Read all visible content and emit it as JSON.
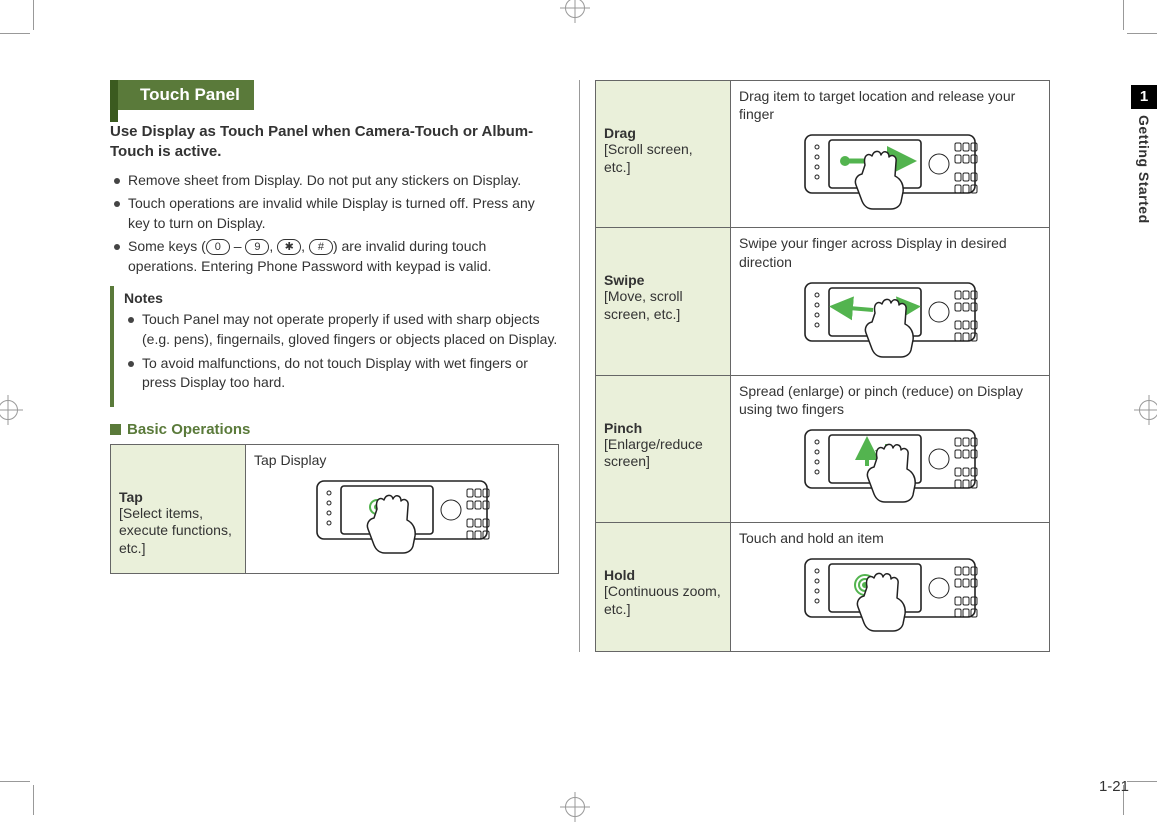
{
  "side": {
    "chapter": "1",
    "label": "Getting Started"
  },
  "heading": "Touch Panel",
  "intro": "Use Display as Touch Panel when Camera-Touch or Album-Touch is active.",
  "bullets": [
    "Remove sheet from Display. Do not put any stickers on Display.",
    "Touch operations are invalid while Display is turned off. Press any key to turn on Display."
  ],
  "bullet3_pre": "Some keys (",
  "bullet3_keys": {
    "k0": "0",
    "dash": " – ",
    "k9": "9",
    "c1": ", ",
    "kstar": "✱",
    "c2": ", ",
    "khash": "#"
  },
  "bullet3_post": ") are invalid during touch operations. Entering Phone Password with keypad is valid.",
  "notes": {
    "title": "Notes",
    "items": [
      "Touch Panel may not operate properly if used with sharp objects (e.g. pens), fingernails, gloved fingers or objects placed on Display.",
      "To avoid malfunctions, do not touch Display with wet fingers or press Display too hard."
    ]
  },
  "sub_heading": "Basic Operations",
  "ops": [
    {
      "title": "Tap",
      "desc": "[Select items, execute functions, etc.]",
      "caption": "Tap Display",
      "kind": "tap"
    },
    {
      "title": "Drag",
      "desc": "[Scroll screen, etc.]",
      "caption": "Drag item to target location and release your finger",
      "kind": "drag"
    },
    {
      "title": "Swipe",
      "desc": "[Move, scroll screen, etc.]",
      "caption": "Swipe your finger across Display in desired direction",
      "kind": "swipe"
    },
    {
      "title": "Pinch",
      "desc": "[Enlarge/reduce screen]",
      "caption": "Spread (enlarge) or pinch (reduce) on Display using two fingers",
      "kind": "pinch"
    },
    {
      "title": "Hold",
      "desc": "[Continuous zoom, etc.]",
      "caption": "Touch and hold an item",
      "kind": "hold"
    }
  ],
  "page_number": "1-21",
  "colors": {
    "accent": "#5a7a3a",
    "accent_dark": "#3b5a1f",
    "cell_bg": "#eaf0da",
    "border": "#666666",
    "text": "#333333",
    "crop": "#999999",
    "gesture_green": "#53b44f"
  }
}
